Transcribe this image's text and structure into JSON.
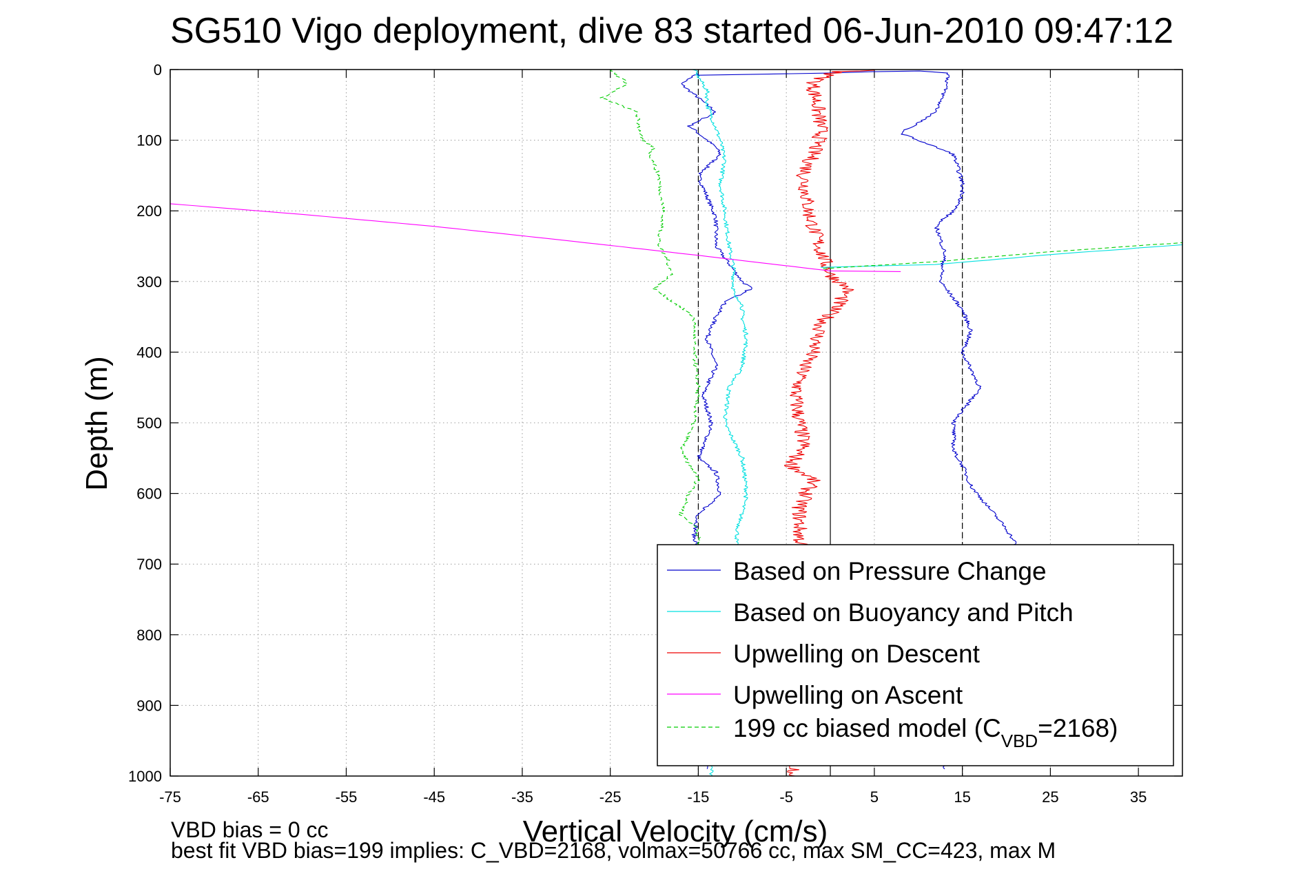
{
  "chart_data": {
    "type": "line",
    "title": "SG510 Vigo deployment, dive 83 started 06-Jun-2010 09:47:12",
    "xlabel": "Vertical Velocity (cm/s)",
    "ylabel": "Depth (m)",
    "xlim": [
      -75,
      40
    ],
    "ylim": [
      0,
      1000
    ],
    "y_reversed": true,
    "grid": true,
    "x_ticks": [
      -75,
      -65,
      -55,
      -45,
      -35,
      -25,
      -15,
      -5,
      5,
      15,
      25,
      35
    ],
    "y_ticks": [
      0,
      100,
      200,
      300,
      400,
      500,
      600,
      700,
      800,
      900,
      1000
    ],
    "x_tick_labels": [
      "-75",
      "-65",
      "-55",
      "-45",
      "-35",
      "-25",
      "-15",
      "-5",
      "5",
      "15",
      "25",
      "35"
    ],
    "y_tick_labels": [
      "0",
      "100",
      "200",
      "300",
      "400",
      "500",
      "600",
      "700",
      "800",
      "900",
      "1000"
    ],
    "reference_lines": [
      {
        "x": -15,
        "style": "dashed"
      },
      {
        "x": 0,
        "style": "solid"
      },
      {
        "x": 15,
        "style": "dashed"
      }
    ],
    "legend_position": "bottom-right",
    "series": [
      {
        "name": "Based on Pressure Change",
        "color": "#0000cc",
        "style": "solid",
        "x": [
          -15,
          -17,
          -15,
          -13,
          -16,
          -14,
          -13,
          -12.5,
          -15,
          -14,
          -13,
          -13,
          -10,
          -9,
          -12,
          -13,
          -14,
          -13,
          -14.5,
          -13.5,
          -14,
          -15,
          -13,
          -12.5,
          -15,
          -15.5,
          -14.5,
          -13,
          -15,
          -14.5,
          -14
        ],
        "y": [
          5,
          20,
          40,
          60,
          80,
          100,
          110,
          120,
          150,
          180,
          210,
          250,
          300,
          310,
          330,
          350,
          380,
          420,
          460,
          500,
          520,
          550,
          570,
          600,
          630,
          660,
          700,
          800,
          900,
          950,
          990
        ]
      },
      {
        "name": "Based on Buoyancy and Pitch",
        "color": "#00e0e0",
        "style": "solid",
        "x": [
          -15.5,
          -14,
          -14,
          -12.5,
          -12,
          -12.5,
          -12,
          -11.5,
          -11,
          -11,
          -10,
          -10,
          -9.5,
          -10,
          -11.5,
          -12,
          -10,
          -9.5,
          -10.5,
          -11,
          -13,
          -13.5
        ],
        "y": [
          0,
          30,
          50,
          100,
          130,
          160,
          200,
          250,
          280,
          320,
          330,
          350,
          380,
          420,
          450,
          500,
          550,
          600,
          650,
          700,
          900,
          1000
        ]
      },
      {
        "name": "Upwelling on Descent",
        "color": "#ee0000",
        "style": "solid",
        "x": [
          0,
          -2,
          -1.5,
          -1,
          -3,
          -2.5,
          -1,
          0,
          2,
          1,
          -1,
          -2,
          -3,
          -4,
          -3.5,
          -3,
          -4.5,
          -2,
          -3.5,
          -3.5,
          -3,
          -4,
          -4
        ],
        "y": [
          5,
          20,
          50,
          90,
          150,
          200,
          260,
          290,
          310,
          330,
          360,
          400,
          420,
          460,
          500,
          530,
          560,
          580,
          620,
          660,
          700,
          900,
          1000
        ]
      },
      {
        "name": "Upwelling on Ascent",
        "color": "#ff00ff",
        "style": "solid",
        "x": [
          -75,
          -60,
          -45,
          -30,
          -15,
          0,
          8
        ],
        "y": [
          190,
          205,
          222,
          242,
          263,
          285,
          286
        ]
      },
      {
        "name": "199 cc biased model (C<sub>VBD</sub>=2168)",
        "color": "#00cc00",
        "style": "dashed",
        "x": [
          -25,
          -23,
          -26,
          -22,
          -21.5,
          -20,
          -20.5,
          -19.5,
          -19,
          -19.5,
          -18.5,
          -18,
          -19,
          -20,
          -15.5,
          -15.5,
          -15,
          -15.5,
          -17,
          -16,
          -15,
          -16,
          -17,
          -15,
          -15
        ],
        "y": [
          0,
          20,
          40,
          60,
          100,
          110,
          120,
          150,
          200,
          250,
          270,
          290,
          300,
          310,
          350,
          400,
          450,
          500,
          540,
          560,
          580,
          600,
          630,
          650,
          690
        ]
      }
    ],
    "extra_segments": [
      {
        "series": "Based on Buoyancy and Pitch",
        "x": [
          -1,
          12,
          25,
          40
        ],
        "y": [
          280,
          276,
          262,
          248
        ]
      },
      {
        "series": "199 cc biased model (C<sub>VBD</sub>=2168)",
        "x": [
          -1,
          12,
          25,
          40
        ],
        "y": [
          282,
          272,
          258,
          245
        ]
      },
      {
        "series": "199 cc biased model (C<sub>VBD</sub>=2168)",
        "x": [
          -75,
          -40,
          0,
          40
        ],
        "y": [
          0,
          0,
          0,
          0
        ]
      },
      {
        "series": "Based on Pressure Change",
        "x": [
          -15,
          0,
          5,
          10,
          13.5,
          13,
          12,
          8,
          14,
          15,
          15,
          14,
          12,
          13,
          12.5,
          15,
          16,
          15,
          17,
          14,
          14,
          15,
          16,
          18,
          20,
          21,
          13
        ],
        "y": [
          8,
          5,
          3,
          2,
          5,
          30,
          60,
          90,
          120,
          160,
          180,
          200,
          220,
          260,
          300,
          340,
          370,
          400,
          450,
          500,
          540,
          560,
          590,
          620,
          650,
          670,
          990
        ]
      },
      {
        "series": "Upwelling on Descent",
        "x": [
          0,
          1,
          3,
          5
        ],
        "y": [
          6,
          3,
          2,
          1
        ]
      }
    ],
    "annotations": [
      "VBD bias = 0 cc",
      "best fit VBD bias=199 implies: C_VBD=2168, volmax=50766 cc, max SM_CC=423, max M"
    ]
  }
}
